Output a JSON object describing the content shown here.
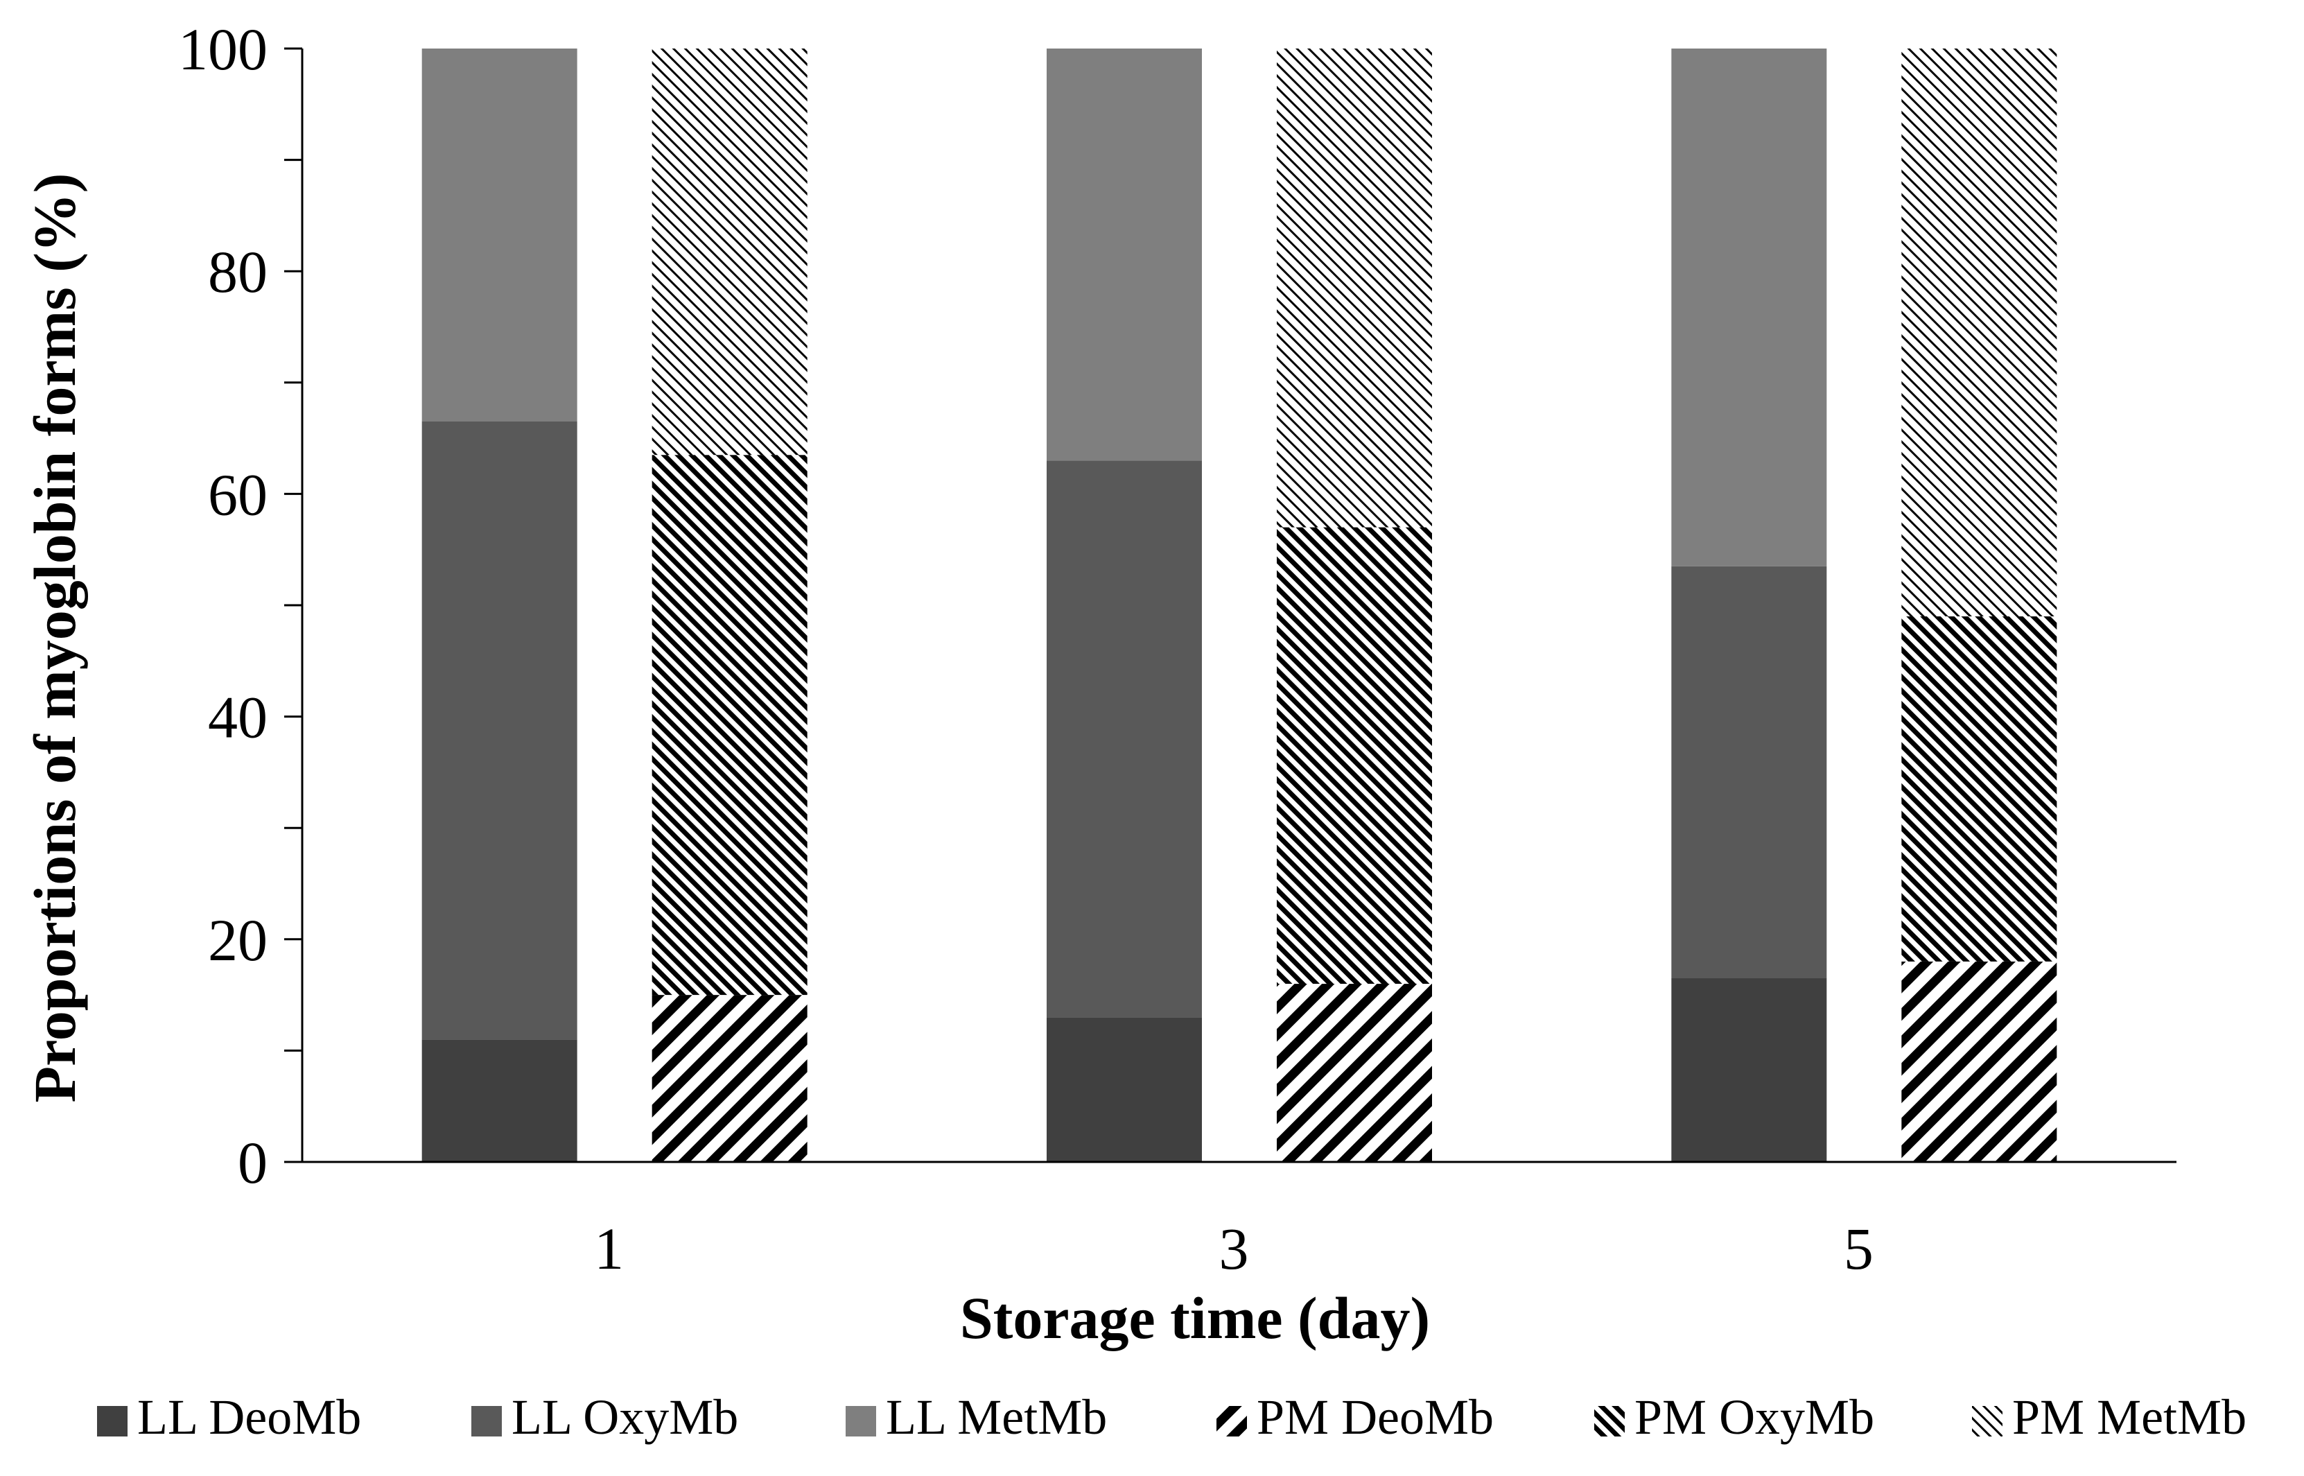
{
  "chart_data": {
    "type": "stacked-bar",
    "xlabel": "Storage time (day)",
    "ylabel": "Proportions of  myoglobin forms (%)",
    "categories": [
      "1",
      "3",
      "5"
    ],
    "ylim": [
      0,
      100
    ],
    "yticks": [
      "0",
      "20",
      "40",
      "60",
      "80",
      "100"
    ],
    "legend_position": "bottom",
    "groups": [
      {
        "name": "LL",
        "series": [
          {
            "name": "LL DeoMb",
            "values": [
              11,
              13,
              16.5
            ],
            "color": "#404040",
            "pattern": "solid"
          },
          {
            "name": "LL OxyMb",
            "values": [
              55.5,
              50,
              37
            ],
            "color": "#595959",
            "pattern": "solid"
          },
          {
            "name": "LL MetMb",
            "values": [
              33.5,
              37,
              46.5
            ],
            "color": "#7f7f7f",
            "pattern": "solid"
          }
        ]
      },
      {
        "name": "PM",
        "series": [
          {
            "name": "PM DeoMb",
            "values": [
              15,
              16,
              18
            ],
            "color": "#000000",
            "pattern": "wide-diagonal"
          },
          {
            "name": "PM OxyMb",
            "values": [
              48.5,
              41,
              31
            ],
            "color": "#000000",
            "pattern": "dense-diagonal"
          },
          {
            "name": "PM MetMb",
            "values": [
              36.5,
              43,
              51
            ],
            "color": "#000000",
            "pattern": "light-diagonal"
          }
        ]
      }
    ]
  }
}
